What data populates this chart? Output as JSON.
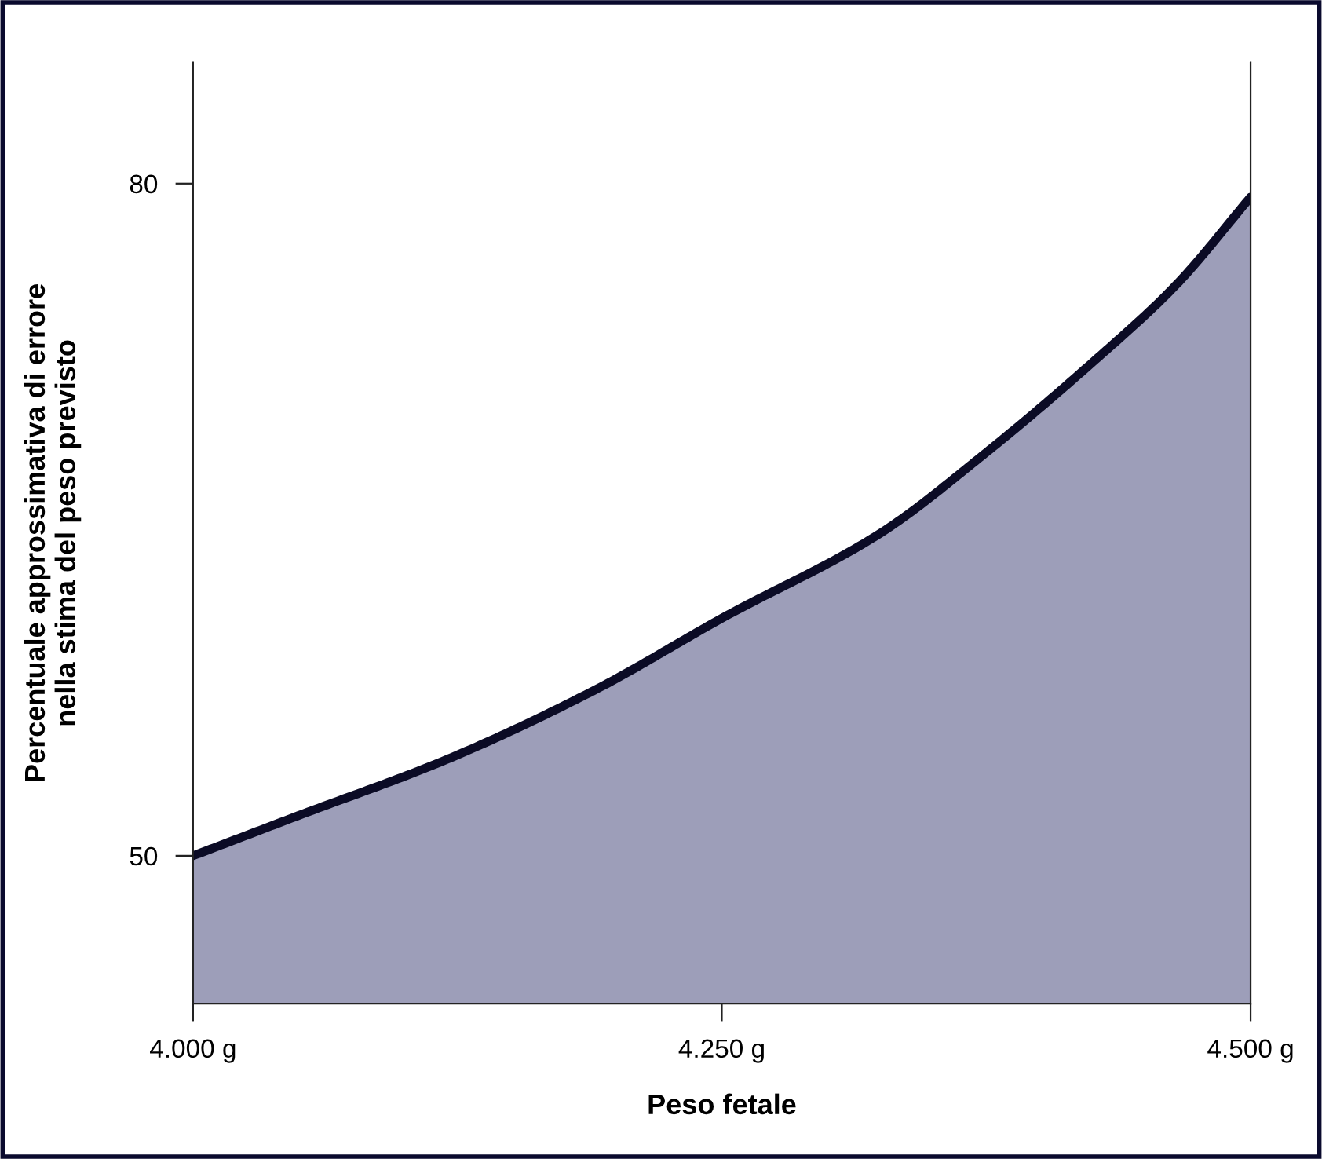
{
  "chart_data": {
    "type": "area",
    "xlabel": "Peso fetale",
    "ylabel": "Percentuale approssimativa di errore\nnella stima del peso previsto",
    "x": [
      4000,
      4050,
      4120,
      4190,
      4250,
      4325,
      4375,
      4425,
      4465,
      4500
    ],
    "series": [
      {
        "color": "#9d9eb9",
        "values": [
          50,
          51.8,
          54.3,
          57.4,
          60.6,
          64.4,
          68,
          72,
          75.5,
          79.4
        ]
      }
    ],
    "xlim": [
      4000,
      4500
    ],
    "ylim": [
      43.4,
      85.4
    ],
    "xticks": [
      {
        "value": 4000,
        "label": "4.000 g"
      },
      {
        "value": 4250,
        "label": "4.250 g"
      },
      {
        "value": 4500,
        "label": "4.500 g"
      }
    ],
    "yticks": [
      50,
      80
    ]
  }
}
